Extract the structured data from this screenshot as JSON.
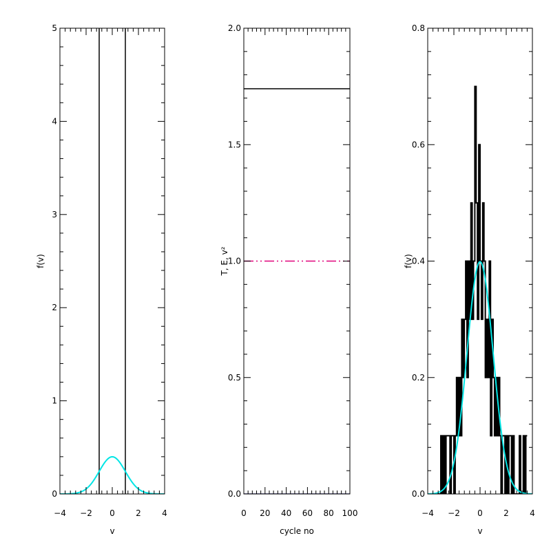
{
  "chart_data": [
    {
      "type": "line",
      "xlabel": "v",
      "ylabel": "f(v)",
      "xlim": [
        -4,
        4
      ],
      "ylim": [
        0,
        5
      ],
      "xticks": [
        "−4",
        "−2",
        "0",
        "2",
        "4"
      ],
      "yticks": [
        "0",
        "1",
        "2",
        "3",
        "4",
        "5"
      ],
      "grid": false,
      "series": [
        {
          "color": "#000000",
          "kind": "vlines",
          "x": [
            -1,
            1
          ],
          "y_range": [
            0,
            5
          ]
        },
        {
          "color": "#00e5e5",
          "kind": "gaussian",
          "mean": 0,
          "sigma": 1,
          "peak": 0.399
        }
      ]
    },
    {
      "type": "line",
      "xlabel": "cycle no",
      "ylabel": "T, E, v²",
      "xlim": [
        0,
        100
      ],
      "ylim": [
        0,
        2
      ],
      "xticks": [
        "0",
        "20",
        "40",
        "60",
        "80",
        "100"
      ],
      "yticks": [
        "0.0",
        "0.5",
        "1.0",
        "1.5",
        "2.0"
      ],
      "grid": false,
      "series": [
        {
          "color": "#000000",
          "style": "solid",
          "x": [
            0,
            100
          ],
          "y": [
            1.74,
            1.74
          ]
        },
        {
          "color": "#e0007a",
          "style": "dash-dot-dot",
          "x": [
            0,
            100
          ],
          "y": [
            1.0,
            1.0
          ]
        },
        {
          "color": "#1a1a80",
          "style": "solid",
          "x": [
            0,
            100
          ],
          "y": [
            0.0,
            0.0
          ]
        }
      ]
    },
    {
      "type": "line",
      "xlabel": "v",
      "ylabel": "f(v)",
      "xlim": [
        -4,
        4
      ],
      "ylim": [
        0,
        0.8
      ],
      "xticks": [
        "−4",
        "−2",
        "0",
        "2",
        "4"
      ],
      "yticks": [
        "0.0",
        "0.2",
        "0.4",
        "0.6",
        "0.8"
      ],
      "grid": false,
      "series": [
        {
          "color": "#000000",
          "kind": "step",
          "x": [
            -3.85,
            -3.75,
            -3.65,
            -3.55,
            -3.45,
            -3.35,
            -3.25,
            -3.15,
            -3.05,
            -2.95,
            -2.85,
            -2.75,
            -2.65,
            -2.55,
            -2.45,
            -2.35,
            -2.25,
            -2.15,
            -2.05,
            -1.95,
            -1.85,
            -1.75,
            -1.65,
            -1.55,
            -1.45,
            -1.35,
            -1.25,
            -1.15,
            -1.05,
            -0.95,
            -0.85,
            -0.75,
            -0.65,
            -0.55,
            -0.45,
            -0.35,
            -0.25,
            -0.15,
            -0.05,
            0.05,
            0.15,
            0.25,
            0.35,
            0.45,
            0.55,
            0.65,
            0.75,
            0.85,
            0.95,
            1.05,
            1.15,
            1.25,
            1.35,
            1.45,
            1.55,
            1.65,
            1.75,
            1.85,
            1.95,
            2.05,
            2.15,
            2.25,
            2.35,
            2.45,
            2.55,
            2.65,
            2.75,
            2.85,
            2.95,
            3.05,
            3.15,
            3.25,
            3.35,
            3.45,
            3.55
          ],
          "y": [
            0,
            0,
            0,
            0,
            0,
            0,
            0,
            0,
            0,
            0.1,
            0,
            0.1,
            0,
            0.1,
            0.1,
            0.1,
            0,
            0.1,
            0.1,
            0,
            0.1,
            0.2,
            0.1,
            0.2,
            0.1,
            0.3,
            0.2,
            0.3,
            0.4,
            0.2,
            0.4,
            0.3,
            0.5,
            0.3,
            0.4,
            0.7,
            0.5,
            0.3,
            0.6,
            0.4,
            0.3,
            0.5,
            0.4,
            0.2,
            0.3,
            0.2,
            0.4,
            0.1,
            0.3,
            0.2,
            0.1,
            0.2,
            0.1,
            0.2,
            0.1,
            0,
            0.1,
            0.1,
            0,
            0.1,
            0,
            0.1,
            0.1,
            0,
            0.1,
            0,
            0,
            0,
            0,
            0.1,
            0,
            0,
            0.1,
            0,
            0.1
          ]
        },
        {
          "color": "#00e5e5",
          "kind": "gaussian",
          "mean": 0,
          "sigma": 1,
          "peak": 0.399
        }
      ]
    }
  ]
}
